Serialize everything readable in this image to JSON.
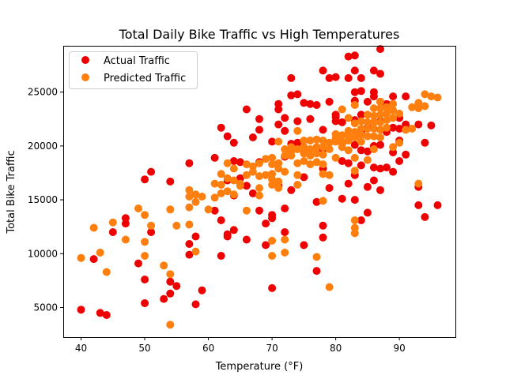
{
  "chart_data": {
    "type": "scatter",
    "title": "Total Daily Bike Traffic vs High Temperatures",
    "xlabel": "Temperature (°F)",
    "ylabel": "Total Bike Traffic",
    "xlim": [
      37.2,
      98.8
    ],
    "ylim": [
      2250,
      29300
    ],
    "xticks": [
      40,
      50,
      60,
      70,
      80,
      90
    ],
    "yticks": [
      5000,
      10000,
      15000,
      20000,
      25000
    ],
    "ytick_labels": [
      "5000",
      "10000",
      "15000",
      "20000",
      "25000"
    ],
    "legend_position": "top-left",
    "grid": false,
    "series": [
      {
        "name": "Actual Traffic",
        "color": "#ee0000",
        "points": [
          [
            40,
            4800
          ],
          [
            42,
            9500
          ],
          [
            43,
            4500
          ],
          [
            44,
            4300
          ],
          [
            45,
            12000
          ],
          [
            47,
            13300
          ],
          [
            47,
            12800
          ],
          [
            49,
            9100
          ],
          [
            50,
            16900
          ],
          [
            50,
            7600
          ],
          [
            50,
            5400
          ],
          [
            51,
            17600
          ],
          [
            51,
            12000
          ],
          [
            53,
            5800
          ],
          [
            54,
            16700
          ],
          [
            54,
            7400
          ],
          [
            54,
            6300
          ],
          [
            55,
            7000
          ],
          [
            57,
            18400
          ],
          [
            57,
            10900
          ],
          [
            57,
            9900
          ],
          [
            58,
            5300
          ],
          [
            58,
            11600
          ],
          [
            59,
            6600
          ],
          [
            61,
            18900
          ],
          [
            61,
            14000
          ],
          [
            62,
            21700
          ],
          [
            62,
            13100
          ],
          [
            62,
            9800
          ],
          [
            63,
            20900
          ],
          [
            63,
            16800
          ],
          [
            63,
            11800
          ],
          [
            63,
            11600
          ],
          [
            64,
            20300
          ],
          [
            64,
            18600
          ],
          [
            64,
            15400
          ],
          [
            64,
            12200
          ],
          [
            65,
            18500
          ],
          [
            65,
            17000
          ],
          [
            66,
            23400
          ],
          [
            66,
            16300
          ],
          [
            66,
            11300
          ],
          [
            67,
            20800
          ],
          [
            67,
            15600
          ],
          [
            68,
            22500
          ],
          [
            68,
            21500
          ],
          [
            68,
            18500
          ],
          [
            68,
            14000
          ],
          [
            69,
            12800
          ],
          [
            69,
            10800
          ],
          [
            70,
            13600
          ],
          [
            70,
            13300
          ],
          [
            70,
            20400
          ],
          [
            70,
            6800
          ],
          [
            71,
            23900
          ],
          [
            71,
            23400
          ],
          [
            71,
            22000
          ],
          [
            71,
            16300
          ],
          [
            72,
            22600
          ],
          [
            72,
            21400
          ],
          [
            72,
            19000
          ],
          [
            72,
            14200
          ],
          [
            72,
            12000
          ],
          [
            73,
            26300
          ],
          [
            73,
            24700
          ],
          [
            73,
            20200
          ],
          [
            73,
            15900
          ],
          [
            74,
            24800
          ],
          [
            74,
            22300
          ],
          [
            74,
            20300
          ],
          [
            75,
            24000
          ],
          [
            75,
            19600
          ],
          [
            75,
            17100
          ],
          [
            75,
            10800
          ],
          [
            76,
            23900
          ],
          [
            76,
            22500
          ],
          [
            76,
            20500
          ],
          [
            77,
            23800
          ],
          [
            77,
            14800
          ],
          [
            77,
            8400
          ],
          [
            78,
            27000
          ],
          [
            78,
            21500
          ],
          [
            78,
            19700
          ],
          [
            78,
            17900
          ],
          [
            78,
            12600
          ],
          [
            78,
            11500
          ],
          [
            79,
            26300
          ],
          [
            79,
            24100
          ],
          [
            79,
            16100
          ],
          [
            80,
            26400
          ],
          [
            80,
            22900
          ],
          [
            80,
            22700
          ],
          [
            80,
            22300
          ],
          [
            81,
            15100
          ],
          [
            81,
            22200
          ],
          [
            81,
            20300
          ],
          [
            81,
            18600
          ],
          [
            82,
            28300
          ],
          [
            82,
            26300
          ],
          [
            82,
            18400
          ],
          [
            82,
            16500
          ],
          [
            83,
            28400
          ],
          [
            83,
            27000
          ],
          [
            83,
            25000
          ],
          [
            83,
            24200
          ],
          [
            83,
            22400
          ],
          [
            83,
            20100
          ],
          [
            83,
            17300
          ],
          [
            83,
            15000
          ],
          [
            84,
            26300
          ],
          [
            84,
            25100
          ],
          [
            84,
            22900
          ],
          [
            84,
            21300
          ],
          [
            84,
            19600
          ],
          [
            84,
            18200
          ],
          [
            84,
            13100
          ],
          [
            85,
            24100
          ],
          [
            85,
            21700
          ],
          [
            85,
            19500
          ],
          [
            85,
            16200
          ],
          [
            85,
            13800
          ],
          [
            86,
            27000
          ],
          [
            86,
            25000
          ],
          [
            86,
            24600
          ],
          [
            86,
            22200
          ],
          [
            86,
            20000
          ],
          [
            86,
            18000
          ],
          [
            86,
            16800
          ],
          [
            87,
            29000
          ],
          [
            87,
            26700
          ],
          [
            87,
            24100
          ],
          [
            87,
            22300
          ],
          [
            87,
            20100
          ],
          [
            87,
            17900
          ],
          [
            87,
            15900
          ],
          [
            88,
            23900
          ],
          [
            88,
            21300
          ],
          [
            88,
            18000
          ],
          [
            89,
            24600
          ],
          [
            89,
            21700
          ],
          [
            89,
            19400
          ],
          [
            89,
            17600
          ],
          [
            90,
            22600
          ],
          [
            90,
            21600
          ],
          [
            90,
            20500
          ],
          [
            90,
            18600
          ],
          [
            91,
            24600
          ],
          [
            91,
            22000
          ],
          [
            91,
            19200
          ],
          [
            93,
            22000
          ],
          [
            93,
            16200
          ],
          [
            93,
            14500
          ],
          [
            94,
            20300
          ],
          [
            94,
            13400
          ],
          [
            95,
            21900
          ],
          [
            96,
            14500
          ]
        ]
      },
      {
        "name": "Predicted Traffic",
        "color": "#ff7f0e",
        "points": [
          [
            40,
            9600
          ],
          [
            42,
            12400
          ],
          [
            43,
            10100
          ],
          [
            44,
            8300
          ],
          [
            45,
            12900
          ],
          [
            47,
            11300
          ],
          [
            49,
            14200
          ],
          [
            50,
            13600
          ],
          [
            50,
            11100
          ],
          [
            50,
            9800
          ],
          [
            51,
            12600
          ],
          [
            53,
            8900
          ],
          [
            54,
            14100
          ],
          [
            54,
            8100
          ],
          [
            54,
            3400
          ],
          [
            55,
            12600
          ],
          [
            57,
            15900
          ],
          [
            57,
            15300
          ],
          [
            57,
            14300
          ],
          [
            57,
            12700
          ],
          [
            58,
            15500
          ],
          [
            58,
            14800
          ],
          [
            58,
            10200
          ],
          [
            59,
            15300
          ],
          [
            60,
            14100
          ],
          [
            61,
            16500
          ],
          [
            61,
            15200
          ],
          [
            62,
            17400
          ],
          [
            62,
            16400
          ],
          [
            62,
            15600
          ],
          [
            63,
            18400
          ],
          [
            63,
            17000
          ],
          [
            63,
            15800
          ],
          [
            64,
            17900
          ],
          [
            64,
            16800
          ],
          [
            64,
            15500
          ],
          [
            65,
            16500
          ],
          [
            65,
            16300
          ],
          [
            66,
            18300
          ],
          [
            66,
            17300
          ],
          [
            66,
            14000
          ],
          [
            67,
            18100
          ],
          [
            67,
            17600
          ],
          [
            68,
            18400
          ],
          [
            68,
            17200
          ],
          [
            68,
            16100
          ],
          [
            68,
            15400
          ],
          [
            69,
            18800
          ],
          [
            69,
            17300
          ],
          [
            70,
            18900
          ],
          [
            70,
            18300
          ],
          [
            70,
            17400
          ],
          [
            70,
            16900
          ],
          [
            70,
            16400
          ],
          [
            70,
            11200
          ],
          [
            70,
            9800
          ],
          [
            71,
            20400
          ],
          [
            71,
            18400
          ],
          [
            71,
            17900
          ],
          [
            71,
            16700
          ],
          [
            71,
            16100
          ],
          [
            72,
            19700
          ],
          [
            72,
            19100
          ],
          [
            72,
            17600
          ],
          [
            72,
            11300
          ],
          [
            72,
            10100
          ],
          [
            73,
            19900
          ],
          [
            73,
            19500
          ],
          [
            73,
            19100
          ],
          [
            74,
            21400
          ],
          [
            74,
            19700
          ],
          [
            74,
            18400
          ],
          [
            74,
            17300
          ],
          [
            74,
            16400
          ],
          [
            75,
            20500
          ],
          [
            75,
            19900
          ],
          [
            75,
            19300
          ],
          [
            75,
            18600
          ],
          [
            76,
            20500
          ],
          [
            76,
            19700
          ],
          [
            76,
            19100
          ],
          [
            76,
            18300
          ],
          [
            77,
            20600
          ],
          [
            77,
            19900
          ],
          [
            77,
            19300
          ],
          [
            77,
            18500
          ],
          [
            77,
            9700
          ],
          [
            78,
            20500
          ],
          [
            78,
            19900
          ],
          [
            78,
            19200
          ],
          [
            78,
            18300
          ],
          [
            78,
            17400
          ],
          [
            78,
            14900
          ],
          [
            79,
            20300
          ],
          [
            79,
            19700
          ],
          [
            79,
            17300
          ],
          [
            79,
            6900
          ],
          [
            80,
            21100
          ],
          [
            80,
            20700
          ],
          [
            80,
            20400
          ],
          [
            80,
            18900
          ],
          [
            81,
            23400
          ],
          [
            81,
            21000
          ],
          [
            81,
            20400
          ],
          [
            81,
            19900
          ],
          [
            82,
            22600
          ],
          [
            82,
            21400
          ],
          [
            82,
            20900
          ],
          [
            82,
            20500
          ],
          [
            82,
            19600
          ],
          [
            83,
            23800
          ],
          [
            83,
            22100
          ],
          [
            83,
            21300
          ],
          [
            83,
            20800
          ],
          [
            83,
            18900
          ],
          [
            83,
            17700
          ],
          [
            83,
            13100
          ],
          [
            83,
            12400
          ],
          [
            83,
            11900
          ],
          [
            84,
            22300
          ],
          [
            84,
            21600
          ],
          [
            84,
            21000
          ],
          [
            84,
            20400
          ],
          [
            85,
            22900
          ],
          [
            85,
            22200
          ],
          [
            85,
            21600
          ],
          [
            85,
            20900
          ],
          [
            85,
            18700
          ],
          [
            86,
            23500
          ],
          [
            86,
            22800
          ],
          [
            86,
            22200
          ],
          [
            86,
            21600
          ],
          [
            86,
            20900
          ],
          [
            86,
            19700
          ],
          [
            87,
            24100
          ],
          [
            87,
            23500
          ],
          [
            87,
            22900
          ],
          [
            87,
            22200
          ],
          [
            87,
            21500
          ],
          [
            87,
            20800
          ],
          [
            88,
            23600
          ],
          [
            88,
            23000
          ],
          [
            88,
            22400
          ],
          [
            88,
            21700
          ],
          [
            89,
            23900
          ],
          [
            89,
            23300
          ],
          [
            89,
            22600
          ],
          [
            89,
            19900
          ],
          [
            90,
            23000
          ],
          [
            90,
            20300
          ],
          [
            91,
            21500
          ],
          [
            92,
            23600
          ],
          [
            92,
            21600
          ],
          [
            93,
            24000
          ],
          [
            93,
            23500
          ],
          [
            93,
            16500
          ],
          [
            94,
            24800
          ],
          [
            94,
            23700
          ],
          [
            95,
            24600
          ],
          [
            96,
            24500
          ]
        ]
      }
    ]
  }
}
